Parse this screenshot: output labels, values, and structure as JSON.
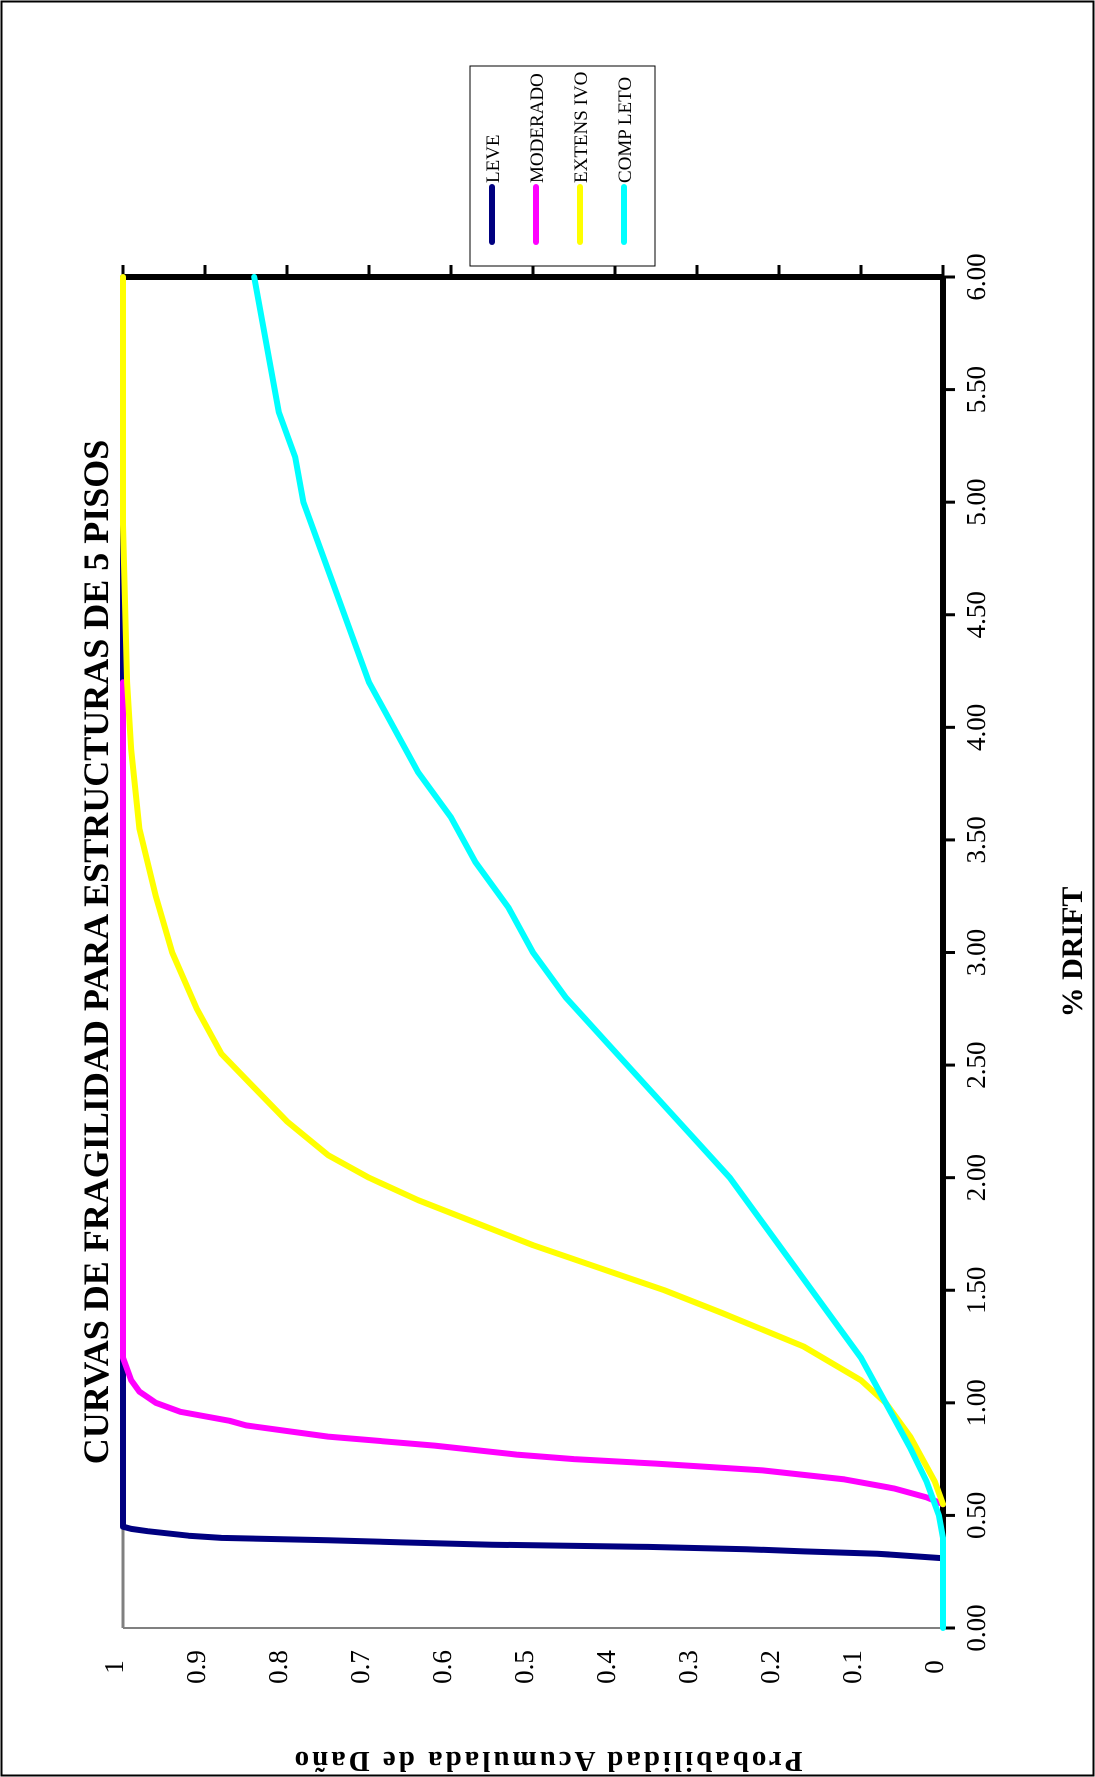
{
  "chart_data": {
    "type": "line",
    "title": "CURVAS DE FRAGILIDAD PARA ESTRUCTURAS DE 5 PISOS",
    "xlabel": "% DRIFT",
    "ylabel": "Probabilidad Acumulada de Daño",
    "xlim": [
      0,
      6
    ],
    "ylim": [
      0,
      1
    ],
    "x_ticks": [
      "0.00",
      "0.50",
      "1.00",
      "1.50",
      "2.00",
      "2.50",
      "3.00",
      "3.50",
      "4.00",
      "4.50",
      "5.00",
      "5.50",
      "6.00"
    ],
    "y_ticks": [
      "0",
      "0.1",
      "0.2",
      "0.3",
      "0.4",
      "0.5",
      "0.6",
      "0.7",
      "0.8",
      "0.9",
      "1"
    ],
    "legend_position": "top-right",
    "grid": false,
    "series": [
      {
        "name": "LEVE",
        "color": "#000080",
        "points": [
          [
            0.31,
            0.0
          ],
          [
            0.33,
            0.08
          ],
          [
            0.34,
            0.17
          ],
          [
            0.35,
            0.24
          ],
          [
            0.36,
            0.36
          ],
          [
            0.37,
            0.55
          ],
          [
            0.38,
            0.66
          ],
          [
            0.39,
            0.75
          ],
          [
            0.4,
            0.88
          ],
          [
            0.41,
            0.92
          ],
          [
            0.43,
            0.97
          ],
          [
            0.44,
            0.99
          ],
          [
            0.45,
            1.0
          ],
          [
            1.2,
            1.0
          ],
          [
            6.0,
            1.0
          ]
        ]
      },
      {
        "name": "MODERADO",
        "color": "#FF00FF",
        "points": [
          [
            0.55,
            0.0
          ],
          [
            0.58,
            0.02
          ],
          [
            0.62,
            0.06
          ],
          [
            0.66,
            0.12
          ],
          [
            0.7,
            0.22
          ],
          [
            0.73,
            0.35
          ],
          [
            0.75,
            0.45
          ],
          [
            0.77,
            0.52
          ],
          [
            0.81,
            0.62
          ],
          [
            0.85,
            0.75
          ],
          [
            0.9,
            0.85
          ],
          [
            0.92,
            0.87
          ],
          [
            0.96,
            0.93
          ],
          [
            1.0,
            0.96
          ],
          [
            1.05,
            0.98
          ],
          [
            1.1,
            0.99
          ],
          [
            1.2,
            1.0
          ],
          [
            4.2,
            1.0
          ]
        ]
      },
      {
        "name": "EXTENS IVO",
        "color": "#FFFF00",
        "points": [
          [
            0.55,
            0.0
          ],
          [
            0.65,
            0.01
          ],
          [
            0.85,
            0.04
          ],
          [
            1.0,
            0.07
          ],
          [
            1.1,
            0.1
          ],
          [
            1.25,
            0.17
          ],
          [
            1.4,
            0.27
          ],
          [
            1.5,
            0.34
          ],
          [
            1.6,
            0.42
          ],
          [
            1.7,
            0.5
          ],
          [
            1.8,
            0.57
          ],
          [
            1.9,
            0.64
          ],
          [
            2.0,
            0.7
          ],
          [
            2.1,
            0.75
          ],
          [
            2.25,
            0.8
          ],
          [
            2.4,
            0.84
          ],
          [
            2.55,
            0.88
          ],
          [
            2.75,
            0.91
          ],
          [
            3.0,
            0.94
          ],
          [
            3.25,
            0.96
          ],
          [
            3.55,
            0.98
          ],
          [
            3.9,
            0.99
          ],
          [
            4.2,
            0.995
          ],
          [
            4.9,
            1.0
          ],
          [
            6.0,
            1.0
          ]
        ]
      },
      {
        "name": "COMP LETO",
        "color": "#00FFFF",
        "points": [
          [
            0.0,
            0.0
          ],
          [
            0.4,
            0.0
          ],
          [
            0.5,
            0.005
          ],
          [
            0.65,
            0.02
          ],
          [
            0.8,
            0.04
          ],
          [
            1.0,
            0.07
          ],
          [
            1.2,
            0.1
          ],
          [
            1.4,
            0.14
          ],
          [
            1.6,
            0.18
          ],
          [
            1.8,
            0.22
          ],
          [
            2.0,
            0.26
          ],
          [
            2.2,
            0.31
          ],
          [
            2.4,
            0.36
          ],
          [
            2.6,
            0.41
          ],
          [
            2.8,
            0.46
          ],
          [
            3.0,
            0.5
          ],
          [
            3.2,
            0.53
          ],
          [
            3.4,
            0.57
          ],
          [
            3.6,
            0.6
          ],
          [
            3.8,
            0.64
          ],
          [
            4.0,
            0.67
          ],
          [
            4.2,
            0.7
          ],
          [
            4.4,
            0.72
          ],
          [
            4.6,
            0.74
          ],
          [
            4.8,
            0.76
          ],
          [
            5.0,
            0.78
          ],
          [
            5.2,
            0.79
          ],
          [
            5.4,
            0.81
          ],
          [
            5.6,
            0.82
          ],
          [
            5.8,
            0.83
          ],
          [
            6.0,
            0.84
          ]
        ]
      }
    ]
  }
}
